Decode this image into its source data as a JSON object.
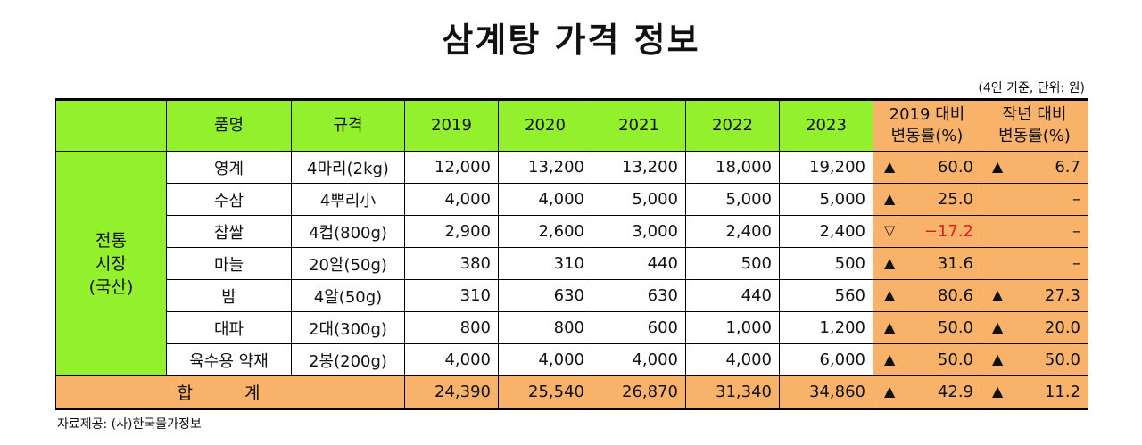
{
  "title": "삼계탕 가격 정보",
  "unit_note": "(4인 기준, 단위: 원)",
  "source": "자료제공: (사)한국물가정보",
  "table": {
    "headers": {
      "item": "품명",
      "spec": "규격",
      "y2019": "2019",
      "y2020": "2020",
      "y2021": "2021",
      "y2022": "2022",
      "y2023": "2023",
      "chg2019_line1": "2019 대비",
      "chg2019_line2": "변동률(%)",
      "chgprev_line1": "작년 대비",
      "chgprev_line2": "변동률(%)"
    },
    "category": {
      "line1": "전통",
      "line2": "시장",
      "line3": "(국산)"
    },
    "rows": [
      {
        "item": "영계",
        "spec": "4마리(2kg)",
        "v2019": "12,000",
        "v2020": "13,200",
        "v2021": "13,200",
        "v2022": "18,000",
        "v2023": "19,200",
        "chg2019_arrow": "▲",
        "chg2019": "60.0",
        "chgprev_arrow": "▲",
        "chgprev": "6.7"
      },
      {
        "item": "수삼",
        "spec": "4뿌리小",
        "v2019": "4,000",
        "v2020": "4,000",
        "v2021": "5,000",
        "v2022": "5,000",
        "v2023": "5,000",
        "chg2019_arrow": "▲",
        "chg2019": "25.0",
        "chgprev_arrow": "",
        "chgprev": "–"
      },
      {
        "item": "찹쌀",
        "spec": "4컵(800g)",
        "v2019": "2,900",
        "v2020": "2,600",
        "v2021": "3,000",
        "v2022": "2,400",
        "v2023": "2,400",
        "chg2019_arrow": "▽",
        "chg2019": "−17.2",
        "chgprev_arrow": "",
        "chgprev": "–"
      },
      {
        "item": "마늘",
        "spec": "20알(50g)",
        "v2019": "380",
        "v2020": "310",
        "v2021": "440",
        "v2022": "500",
        "v2023": "500",
        "chg2019_arrow": "▲",
        "chg2019": "31.6",
        "chgprev_arrow": "",
        "chgprev": "–"
      },
      {
        "item": "밤",
        "spec": "4알(50g)",
        "v2019": "310",
        "v2020": "630",
        "v2021": "630",
        "v2022": "440",
        "v2023": "560",
        "chg2019_arrow": "▲",
        "chg2019": "80.6",
        "chgprev_arrow": "▲",
        "chgprev": "27.3"
      },
      {
        "item": "대파",
        "spec": "2대(300g)",
        "v2019": "800",
        "v2020": "800",
        "v2021": "600",
        "v2022": "1,000",
        "v2023": "1,200",
        "chg2019_arrow": "▲",
        "chg2019": "50.0",
        "chgprev_arrow": "▲",
        "chgprev": "20.0"
      },
      {
        "item": "육수용 약재",
        "spec": "2봉(200g)",
        "v2019": "4,000",
        "v2020": "4,000",
        "v2021": "4,000",
        "v2022": "4,000",
        "v2023": "6,000",
        "chg2019_arrow": "▲",
        "chg2019": "50.0",
        "chgprev_arrow": "▲",
        "chgprev": "50.0"
      }
    ],
    "total": {
      "label": "합 계",
      "v2019": "24,390",
      "v2020": "25,540",
      "v2021": "26,870",
      "v2022": "31,340",
      "v2023": "34,860",
      "chg2019_arrow": "▲",
      "chg2019": "42.9",
      "chgprev_arrow": "▲",
      "chgprev": "11.2"
    }
  },
  "colors": {
    "header_green": "#92f02c",
    "highlight_orange": "#f8b26a",
    "negative_red": "#e0201a"
  }
}
